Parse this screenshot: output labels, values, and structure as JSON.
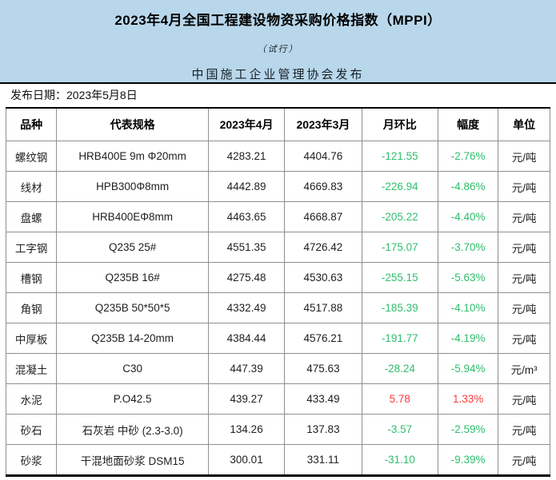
{
  "colors": {
    "banner_background": "#b9d7eb",
    "negative_change": "#2fbe6e",
    "positive_change": "#fb3a3a"
  },
  "header": {
    "title": "2023年4月全国工程建设物资采购价格指数（MPPI）",
    "subtitle": "（试行）",
    "publisher": "中国施工企业管理协会发布",
    "release_label": "发布日期：2023年5月8日"
  },
  "table": {
    "columns": [
      "品种",
      "代表规格",
      "2023年4月",
      "2023年3月",
      "月环比",
      "幅度",
      "单位"
    ],
    "rows": [
      {
        "name": "螺纹钢",
        "spec": "HRB400E 9m Φ20mm",
        "apr": "4283.21",
        "mar": "4404.76",
        "mom": "-121.55",
        "pct": "-2.76%",
        "unit": "元/吨"
      },
      {
        "name": "线材",
        "spec": "HPB300Φ8mm",
        "apr": "4442.89",
        "mar": "4669.83",
        "mom": "-226.94",
        "pct": "-4.86%",
        "unit": "元/吨"
      },
      {
        "name": "盘螺",
        "spec": "HRB400EΦ8mm",
        "apr": "4463.65",
        "mar": "4668.87",
        "mom": "-205.22",
        "pct": "-4.40%",
        "unit": "元/吨"
      },
      {
        "name": "工字钢",
        "spec": "Q235 25#",
        "apr": "4551.35",
        "mar": "4726.42",
        "mom": "-175.07",
        "pct": "-3.70%",
        "unit": "元/吨"
      },
      {
        "name": "槽钢",
        "spec": "Q235B 16#",
        "apr": "4275.48",
        "mar": "4530.63",
        "mom": "-255.15",
        "pct": "-5.63%",
        "unit": "元/吨"
      },
      {
        "name": "角钢",
        "spec": "Q235B 50*50*5",
        "apr": "4332.49",
        "mar": "4517.88",
        "mom": "-185.39",
        "pct": "-4.10%",
        "unit": "元/吨"
      },
      {
        "name": "中厚板",
        "spec": "Q235B 14-20mm",
        "apr": "4384.44",
        "mar": "4576.21",
        "mom": "-191.77",
        "pct": "-4.19%",
        "unit": "元/吨"
      },
      {
        "name": "混凝土",
        "spec": "C30",
        "apr": "447.39",
        "mar": "475.63",
        "mom": "-28.24",
        "pct": "-5.94%",
        "unit": "元/m³"
      },
      {
        "name": "水泥",
        "spec": "P.O42.5",
        "apr": "439.27",
        "mar": "433.49",
        "mom": "5.78",
        "pct": "1.33%",
        "unit": "元/吨"
      },
      {
        "name": "砂石",
        "spec": "石灰岩 中砂 (2.3-3.0)",
        "apr": "134.26",
        "mar": "137.83",
        "mom": "-3.57",
        "pct": "-2.59%",
        "unit": "元/吨"
      },
      {
        "name": "砂浆",
        "spec": "干混地面砂浆 DSM15",
        "apr": "300.01",
        "mar": "331.11",
        "mom": "-31.10",
        "pct": "-9.39%",
        "unit": "元/吨"
      }
    ]
  }
}
